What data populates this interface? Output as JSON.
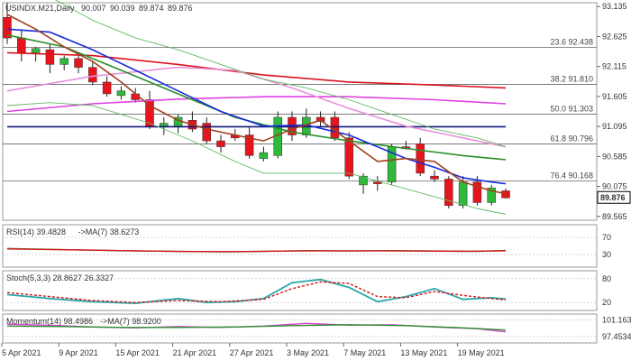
{
  "chart_data": {
    "type": "candlestick",
    "title": "USINDX.M21,Daily",
    "ohlc_header": [
      "90.007",
      "90.039",
      "89.874",
      "89.876"
    ],
    "last_price_label": "89.876",
    "colors": {
      "bull": "#2fb83a",
      "bear": "#e8141c",
      "wick": "#222222",
      "fib_line": "#666666",
      "sma_blue": "#1a2ad9",
      "sma_dark_red": "#a0401e",
      "ma_green": "#2a8f2a",
      "ma_red": "#d8141c",
      "ma_magenta": "#e040e0",
      "ma_pink": "#e890d8",
      "ma_navy": "#10187a",
      "bb_band": "#62b862",
      "rsi_line": "#2a8f2a",
      "rsi_ma": "#d8141c",
      "stoch_k": "#2aa8a8",
      "stoch_d": "#d8141c",
      "mom_line": "#d840d8",
      "mom_ma": "#2a8f2a"
    },
    "main_axis": {
      "ymin": 89.5,
      "ymax": 93.2,
      "ticks": [
        "93.135",
        "92.625",
        "92.115",
        "91.605",
        "91.095",
        "90.585",
        "90.075",
        "89.565"
      ]
    },
    "x_labels": [
      "5 Apr 2021",
      "9 Apr 2021",
      "15 Apr 2021",
      "21 Apr 2021",
      "27 Apr 2021",
      "3 May 2021",
      "7 May 2021",
      "13 May 2021",
      "19 May 2021"
    ],
    "candles": [
      {
        "o": 92.95,
        "h": 93.2,
        "l": 92.5,
        "c": 92.6
      },
      {
        "o": 92.6,
        "h": 92.75,
        "l": 92.2,
        "c": 92.35
      },
      {
        "o": 92.35,
        "h": 92.45,
        "l": 92.2,
        "c": 92.42
      },
      {
        "o": 92.4,
        "h": 92.5,
        "l": 92.0,
        "c": 92.15
      },
      {
        "o": 92.15,
        "h": 92.3,
        "l": 92.05,
        "c": 92.25
      },
      {
        "o": 92.25,
        "h": 92.35,
        "l": 92.0,
        "c": 92.1
      },
      {
        "o": 92.1,
        "h": 92.2,
        "l": 91.8,
        "c": 91.85
      },
      {
        "o": 91.85,
        "h": 91.95,
        "l": 91.6,
        "c": 91.65
      },
      {
        "o": 91.62,
        "h": 91.78,
        "l": 91.55,
        "c": 91.7
      },
      {
        "o": 91.65,
        "h": 91.75,
        "l": 91.5,
        "c": 91.55
      },
      {
        "o": 91.55,
        "h": 91.7,
        "l": 91.05,
        "c": 91.1
      },
      {
        "o": 91.1,
        "h": 91.25,
        "l": 90.95,
        "c": 91.15
      },
      {
        "o": 91.1,
        "h": 91.3,
        "l": 90.98,
        "c": 91.25
      },
      {
        "o": 91.2,
        "h": 91.35,
        "l": 91.0,
        "c": 91.05
      },
      {
        "o": 91.15,
        "h": 91.25,
        "l": 90.8,
        "c": 90.85
      },
      {
        "o": 90.85,
        "h": 90.95,
        "l": 90.65,
        "c": 90.75
      },
      {
        "o": 90.95,
        "h": 91.05,
        "l": 90.85,
        "c": 90.9
      },
      {
        "o": 90.95,
        "h": 91.1,
        "l": 90.55,
        "c": 90.6
      },
      {
        "o": 90.55,
        "h": 90.75,
        "l": 90.5,
        "c": 90.65
      },
      {
        "o": 90.6,
        "h": 91.35,
        "l": 90.55,
        "c": 91.25
      },
      {
        "o": 91.25,
        "h": 91.35,
        "l": 90.85,
        "c": 90.95
      },
      {
        "o": 90.95,
        "h": 91.4,
        "l": 90.9,
        "c": 91.25
      },
      {
        "o": 91.25,
        "h": 91.35,
        "l": 91.1,
        "c": 91.18
      },
      {
        "o": 91.25,
        "h": 91.35,
        "l": 90.85,
        "c": 90.9
      },
      {
        "o": 90.9,
        "h": 91.0,
        "l": 90.2,
        "c": 90.25
      },
      {
        "o": 90.1,
        "h": 90.3,
        "l": 89.95,
        "c": 90.25
      },
      {
        "o": 90.15,
        "h": 90.25,
        "l": 90.0,
        "c": 90.12
      },
      {
        "o": 90.15,
        "h": 90.8,
        "l": 90.1,
        "c": 90.75
      },
      {
        "o": 90.75,
        "h": 90.85,
        "l": 90.7,
        "c": 90.72
      },
      {
        "o": 90.8,
        "h": 90.9,
        "l": 90.25,
        "c": 90.3
      },
      {
        "o": 90.25,
        "h": 90.35,
        "l": 90.15,
        "c": 90.2
      },
      {
        "o": 90.2,
        "h": 90.25,
        "l": 89.7,
        "c": 89.75
      },
      {
        "o": 89.75,
        "h": 90.25,
        "l": 89.7,
        "c": 90.15
      },
      {
        "o": 90.15,
        "h": 90.25,
        "l": 89.75,
        "c": 89.8
      },
      {
        "o": 89.8,
        "h": 90.1,
        "l": 89.75,
        "c": 90.05
      },
      {
        "o": 90.0,
        "h": 90.04,
        "l": 89.87,
        "c": 89.88
      }
    ],
    "fib_levels": [
      {
        "label": "23.6 92.438",
        "value": 92.438
      },
      {
        "label": "38.2 91.810",
        "value": 91.81
      },
      {
        "label": "50.0 91.303",
        "value": 91.303
      },
      {
        "label": "61.8 90.796",
        "value": 90.796
      },
      {
        "label": "76.4 90.168",
        "value": 90.168
      }
    ],
    "moving_averages": [
      {
        "key": "ma_navy",
        "points": [
          [
            0,
            91.09
          ],
          [
            35,
            91.09
          ]
        ]
      },
      {
        "key": "ma_red",
        "points": [
          [
            0,
            92.35
          ],
          [
            6,
            92.3
          ],
          [
            12,
            92.15
          ],
          [
            18,
            91.97
          ],
          [
            24,
            91.85
          ],
          [
            30,
            91.8
          ],
          [
            35,
            91.75
          ]
        ]
      },
      {
        "key": "ma_magenta",
        "points": [
          [
            0,
            91.35
          ],
          [
            6,
            91.48
          ],
          [
            12,
            91.56
          ],
          [
            18,
            91.6
          ],
          [
            24,
            91.6
          ],
          [
            30,
            91.55
          ],
          [
            35,
            91.48
          ]
        ]
      },
      {
        "key": "ma_pink",
        "points": [
          [
            0,
            91.7
          ],
          [
            6,
            91.95
          ],
          [
            12,
            92.1
          ],
          [
            16,
            92.05
          ],
          [
            20,
            91.75
          ],
          [
            24,
            91.4
          ],
          [
            28,
            91.1
          ],
          [
            32,
            90.9
          ],
          [
            35,
            90.75
          ]
        ]
      },
      {
        "key": "ma_green",
        "points": [
          [
            0,
            92.65
          ],
          [
            4,
            92.45
          ],
          [
            8,
            92.05
          ],
          [
            12,
            91.65
          ],
          [
            16,
            91.25
          ],
          [
            20,
            91.0
          ],
          [
            24,
            90.85
          ],
          [
            28,
            90.72
          ],
          [
            32,
            90.6
          ],
          [
            35,
            90.53
          ]
        ]
      },
      {
        "key": "sma_blue",
        "points": [
          [
            0,
            92.75
          ],
          [
            3,
            92.7
          ],
          [
            6,
            92.4
          ],
          [
            9,
            92.05
          ],
          [
            12,
            91.7
          ],
          [
            15,
            91.35
          ],
          [
            18,
            91.1
          ],
          [
            21,
            91.12
          ],
          [
            24,
            90.95
          ],
          [
            26,
            90.75
          ],
          [
            28,
            90.55
          ],
          [
            30,
            90.4
          ],
          [
            32,
            90.22
          ],
          [
            34,
            90.15
          ],
          [
            35,
            90.12
          ]
        ]
      },
      {
        "key": "sma_dark_red",
        "points": [
          [
            0,
            93.0
          ],
          [
            2,
            92.75
          ],
          [
            4,
            92.45
          ],
          [
            6,
            92.2
          ],
          [
            8,
            91.85
          ],
          [
            10,
            91.45
          ],
          [
            12,
            91.2
          ],
          [
            14,
            91.05
          ],
          [
            16,
            90.95
          ],
          [
            18,
            90.85
          ],
          [
            20,
            91.05
          ],
          [
            22,
            91.2
          ],
          [
            24,
            90.85
          ],
          [
            26,
            90.5
          ],
          [
            28,
            90.55
          ],
          [
            30,
            90.5
          ],
          [
            32,
            90.15
          ],
          [
            34,
            90.0
          ],
          [
            35,
            89.95
          ]
        ]
      },
      {
        "key": "bb_band",
        "points": [
          [
            0,
            93.45
          ],
          [
            3,
            93.3
          ],
          [
            6,
            92.9
          ],
          [
            9,
            92.6
          ],
          [
            12,
            92.4
          ],
          [
            15,
            92.15
          ],
          [
            18,
            91.9
          ],
          [
            21,
            91.75
          ],
          [
            24,
            91.55
          ],
          [
            27,
            91.3
          ],
          [
            30,
            91.05
          ],
          [
            33,
            90.9
          ],
          [
            35,
            90.75
          ]
        ]
      },
      {
        "key": "bb_band",
        "points": [
          [
            0,
            91.45
          ],
          [
            3,
            91.5
          ],
          [
            6,
            91.45
          ],
          [
            8,
            91.3
          ],
          [
            10,
            91.15
          ],
          [
            13,
            90.85
          ],
          [
            16,
            90.5
          ],
          [
            18,
            90.3
          ],
          [
            21,
            90.3
          ],
          [
            24,
            90.3
          ],
          [
            27,
            90.1
          ],
          [
            30,
            89.9
          ],
          [
            33,
            89.7
          ],
          [
            35,
            89.6
          ]
        ]
      }
    ],
    "rsi": {
      "label": "RSI(14) 39.4828",
      "ma_label": "->MA(7) 38.6273",
      "ticks": [
        "70",
        "30"
      ],
      "ymin": 0,
      "ymax": 100,
      "line": [
        [
          0,
          44
        ],
        [
          3,
          42
        ],
        [
          6,
          40
        ],
        [
          9,
          38
        ],
        [
          12,
          37
        ],
        [
          15,
          36
        ],
        [
          18,
          37
        ],
        [
          21,
          39
        ],
        [
          24,
          38
        ],
        [
          27,
          39
        ],
        [
          30,
          38
        ],
        [
          33,
          37
        ],
        [
          35,
          39.5
        ]
      ],
      "ma": [
        [
          0,
          43
        ],
        [
          4,
          41
        ],
        [
          8,
          39
        ],
        [
          12,
          37
        ],
        [
          16,
          36.5
        ],
        [
          20,
          38
        ],
        [
          24,
          38.5
        ],
        [
          28,
          38
        ],
        [
          32,
          37.5
        ],
        [
          35,
          38.6
        ]
      ]
    },
    "stoch": {
      "label": "Stoch(5,3,3) 28.8627 26.3327",
      "ticks": [
        "80",
        "20"
      ],
      "ymin": 0,
      "ymax": 100,
      "k": [
        [
          0,
          40
        ],
        [
          3,
          30
        ],
        [
          6,
          22
        ],
        [
          9,
          18
        ],
        [
          12,
          30
        ],
        [
          14,
          20
        ],
        [
          16,
          22
        ],
        [
          18,
          30
        ],
        [
          20,
          70
        ],
        [
          22,
          78
        ],
        [
          24,
          58
        ],
        [
          26,
          22
        ],
        [
          28,
          35
        ],
        [
          30,
          55
        ],
        [
          32,
          28
        ],
        [
          34,
          32
        ],
        [
          35,
          28.9
        ]
      ],
      "d": [
        [
          0,
          45
        ],
        [
          3,
          35
        ],
        [
          6,
          25
        ],
        [
          9,
          20
        ],
        [
          12,
          25
        ],
        [
          15,
          22
        ],
        [
          18,
          28
        ],
        [
          20,
          55
        ],
        [
          22,
          72
        ],
        [
          24,
          68
        ],
        [
          26,
          35
        ],
        [
          28,
          32
        ],
        [
          30,
          48
        ],
        [
          32,
          38
        ],
        [
          34,
          30
        ],
        [
          35,
          26.3
        ]
      ]
    },
    "momentum": {
      "label": "Momentum(14) 98.4986",
      "ma_label": "->MA(7) 98.9200",
      "ticks": [
        "101.1635",
        "97.4534"
      ],
      "ymin": 96.0,
      "ymax": 102.5,
      "line": [
        [
          0,
          100.2
        ],
        [
          3,
          100.0
        ],
        [
          6,
          99.6
        ],
        [
          9,
          99.4
        ],
        [
          12,
          99.7
        ],
        [
          15,
          99.5
        ],
        [
          18,
          99.8
        ],
        [
          21,
          100.4
        ],
        [
          24,
          100.0
        ],
        [
          27,
          100.1
        ],
        [
          30,
          99.6
        ],
        [
          33,
          99.2
        ],
        [
          35,
          98.5
        ]
      ],
      "ma": [
        [
          0,
          99.8
        ],
        [
          4,
          99.7
        ],
        [
          8,
          99.5
        ],
        [
          12,
          99.5
        ],
        [
          16,
          99.6
        ],
        [
          20,
          99.9
        ],
        [
          24,
          100.1
        ],
        [
          28,
          99.9
        ],
        [
          32,
          99.4
        ],
        [
          35,
          98.9
        ]
      ]
    }
  }
}
